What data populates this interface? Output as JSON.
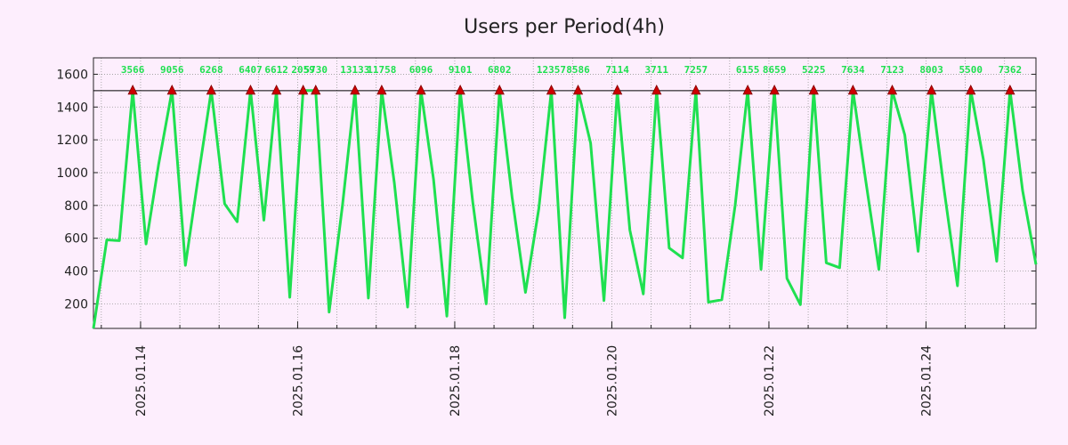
{
  "colors": {
    "background": "#fdeefd",
    "line": "#1fe050",
    "marker": "#cc0000",
    "threshold": "#000000",
    "grid": "#999999",
    "peak_label": "#1fe050"
  },
  "chart_data": {
    "type": "line",
    "title": "Users per Period(4h)",
    "xlabel": "",
    "ylabel": "",
    "x_unit": "days since 2025-01-13 00:00",
    "xlim": [
      0.4,
      12.4
    ],
    "ylim": [
      50,
      1700
    ],
    "y_ticks": [
      200,
      400,
      600,
      800,
      1000,
      1200,
      1400,
      1600
    ],
    "x_ticks": [
      {
        "x": 1,
        "label": "2025.01.14"
      },
      {
        "x": 3,
        "label": "2025.01.16"
      },
      {
        "x": 5,
        "label": "2025.01.18"
      },
      {
        "x": 7,
        "label": "2025.01.20"
      },
      {
        "x": 9,
        "label": "2025.01.22"
      },
      {
        "x": 11,
        "label": "2025.01.24"
      }
    ],
    "x_minor_step": 0.5,
    "grid": true,
    "threshold": 1500,
    "series": [
      {
        "name": "users",
        "x": [
          0.4,
          0.57,
          0.73,
          0.9,
          1.07,
          1.23,
          1.4,
          1.57,
          1.73,
          1.9,
          2.07,
          2.23,
          2.4,
          2.57,
          2.73,
          2.9,
          3.07,
          3.23,
          3.4,
          3.57,
          3.73,
          3.9,
          4.07,
          4.23,
          4.4,
          4.57,
          4.73,
          4.9,
          5.07,
          5.23,
          5.4,
          5.57,
          5.73,
          5.9,
          6.07,
          6.23,
          6.4,
          6.57,
          6.73,
          6.9,
          7.07,
          7.23,
          7.4,
          7.57,
          7.73,
          7.9,
          8.07,
          8.23,
          8.4,
          8.57,
          8.73,
          8.9,
          9.07,
          9.23,
          9.4,
          9.57,
          9.73,
          9.9,
          10.07,
          10.23,
          10.4,
          10.57,
          10.73,
          10.9,
          11.07,
          11.23,
          11.4,
          11.57,
          11.73,
          11.9,
          12.07,
          12.23,
          12.4
        ],
        "values": [
          50,
          590,
          585,
          1500,
          565,
          1050,
          1500,
          435,
          960,
          1500,
          810,
          700,
          1500,
          710,
          1500,
          240,
          1500,
          1500,
          150,
          800,
          1500,
          235,
          1500,
          940,
          180,
          1500,
          960,
          125,
          1500,
          820,
          200,
          1500,
          850,
          270,
          780,
          1500,
          115,
          1500,
          1180,
          220,
          1500,
          650,
          260,
          1500,
          540,
          480,
          1500,
          210,
          225,
          800,
          1500,
          410,
          1500,
          355,
          195,
          1500,
          450,
          420,
          1500,
          960,
          410,
          1500,
          1230,
          520,
          1500,
          900,
          310,
          1500,
          1080,
          460,
          1500,
          890,
          440
        ]
      }
    ],
    "peaks": [
      {
        "x": 0.9,
        "label": "3566"
      },
      {
        "x": 1.4,
        "label": "9056"
      },
      {
        "x": 1.9,
        "label": "6268"
      },
      {
        "x": 2.4,
        "label": "6407"
      },
      {
        "x": 2.73,
        "label": "6612"
      },
      {
        "x": 3.07,
        "label": "2059"
      },
      {
        "x": 3.23,
        "label": "5730"
      },
      {
        "x": 3.73,
        "label": "13133"
      },
      {
        "x": 4.07,
        "label": "11758"
      },
      {
        "x": 4.57,
        "label": "6096"
      },
      {
        "x": 5.07,
        "label": "9101"
      },
      {
        "x": 5.57,
        "label": "6802"
      },
      {
        "x": 6.23,
        "label": "12357"
      },
      {
        "x": 6.57,
        "label": "8586"
      },
      {
        "x": 7.07,
        "label": "7114"
      },
      {
        "x": 7.57,
        "label": "3711"
      },
      {
        "x": 8.07,
        "label": "7257"
      },
      {
        "x": 8.73,
        "label": "6155"
      },
      {
        "x": 9.07,
        "label": "8659"
      },
      {
        "x": 9.57,
        "label": "5225"
      },
      {
        "x": 10.07,
        "label": "7634"
      },
      {
        "x": 10.57,
        "label": "7123"
      },
      {
        "x": 11.07,
        "label": "8003"
      },
      {
        "x": 11.57,
        "label": "5500"
      },
      {
        "x": 12.07,
        "label": "7362"
      }
    ]
  }
}
